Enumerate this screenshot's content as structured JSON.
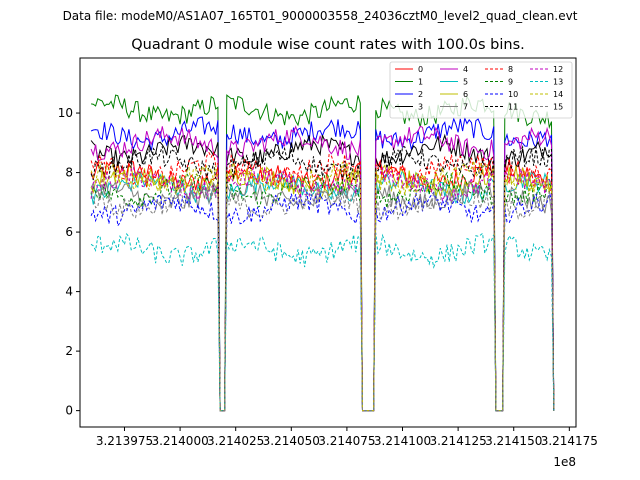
{
  "chart_data": {
    "type": "line",
    "suptitle": "Data file: modeM0/AS1A07_165T01_9000003558_24036cztM0_level2_quad_clean.evt",
    "title": "Quadrant 0 module wise count rates with 100.0s bins.",
    "xlabel": "",
    "ylabel": "",
    "x_offset_label": "1e8",
    "x_tick_values": [
      3.213975,
      3.214,
      3.214025,
      3.21405,
      3.214075,
      3.2141,
      3.214125,
      3.21415,
      3.214175
    ],
    "x_tick_labels": [
      "3.213975",
      "3.214000",
      "3.214025",
      "3.214050",
      "3.214075",
      "3.214100",
      "3.214125",
      "3.214150",
      "3.214175"
    ],
    "y_tick_values": [
      0,
      2,
      4,
      6,
      8,
      10
    ],
    "y_tick_labels": [
      "0",
      "2",
      "4",
      "6",
      "8",
      "10"
    ],
    "xlim": [
      3.213955,
      3.214178
    ],
    "ylim": [
      -0.55,
      11.85
    ],
    "x_start": 3.21396,
    "bin": 1e-06,
    "segments": [
      [
        3.21396,
        3.214018
      ],
      [
        3.214021,
        3.214082
      ],
      [
        3.214088,
        3.214142
      ],
      [
        3.214146,
        3.214168
      ]
    ],
    "gaps": [
      [
        3.214018,
        3.214021
      ],
      [
        3.214082,
        3.214088
      ],
      [
        3.214142,
        3.214146
      ]
    ],
    "legend_position": "upper-right",
    "grid": false,
    "series": [
      {
        "name": "0",
        "color": "#ff0000",
        "dash": "solid",
        "mean": 7.9,
        "noise": 0.35
      },
      {
        "name": "1",
        "color": "#008000",
        "dash": "solid",
        "mean": 10.1,
        "noise": 0.35
      },
      {
        "name": "2",
        "color": "#0000ff",
        "dash": "solid",
        "mean": 9.3,
        "noise": 0.35
      },
      {
        "name": "3",
        "color": "#000000",
        "dash": "solid",
        "mean": 8.7,
        "noise": 0.35
      },
      {
        "name": "4",
        "color": "#bf00bf",
        "dash": "solid",
        "mean": 9.0,
        "noise": 0.35
      },
      {
        "name": "5",
        "color": "#00bfbf",
        "dash": "solid",
        "mean": 7.5,
        "noise": 0.35
      },
      {
        "name": "6",
        "color": "#bfbf00",
        "dash": "solid",
        "mean": 7.7,
        "noise": 0.35
      },
      {
        "name": "7",
        "color": "#808080",
        "dash": "solid",
        "mean": 7.2,
        "noise": 0.35
      },
      {
        "name": "8",
        "color": "#ff0000",
        "dash": "dashed",
        "mean": 8.1,
        "noise": 0.35
      },
      {
        "name": "9",
        "color": "#008000",
        "dash": "dashed",
        "mean": 7.4,
        "noise": 0.35
      },
      {
        "name": "10",
        "color": "#0000ff",
        "dash": "dashed",
        "mean": 6.8,
        "noise": 0.35
      },
      {
        "name": "11",
        "color": "#000000",
        "dash": "dashed",
        "mean": 8.3,
        "noise": 0.35
      },
      {
        "name": "12",
        "color": "#bf00bf",
        "dash": "dashed",
        "mean": 7.6,
        "noise": 0.35
      },
      {
        "name": "13",
        "color": "#00bfbf",
        "dash": "dashed",
        "mean": 5.4,
        "noise": 0.35
      },
      {
        "name": "14",
        "color": "#bfbf00",
        "dash": "dashed",
        "mean": 7.8,
        "noise": 0.35
      },
      {
        "name": "15",
        "color": "#808080",
        "dash": "dashed",
        "mean": 7.0,
        "noise": 0.35
      }
    ]
  }
}
